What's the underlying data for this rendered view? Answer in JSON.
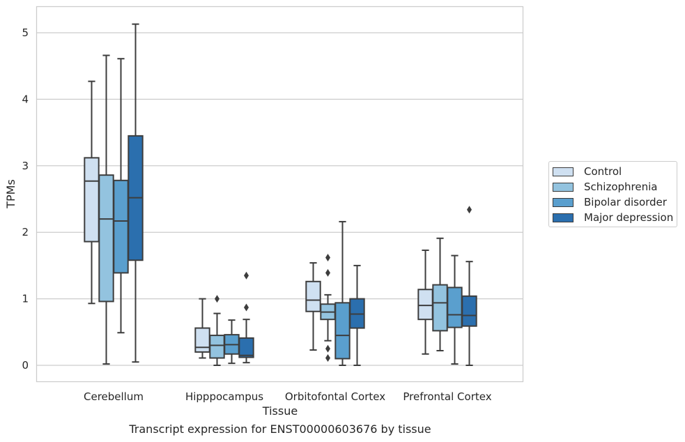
{
  "chart_data": {
    "type": "box",
    "title": "",
    "xlabel": "Tissue",
    "ylabel": "TPMs",
    "caption": "Transcript expression for ENST00000603676 by tissue",
    "ylim": [
      -0.25,
      5.4
    ],
    "yticks": [
      0,
      1,
      2,
      3,
      4,
      5
    ],
    "grid": "horizontal",
    "legend_placement": "right",
    "categories": [
      "Cerebellum",
      "Hipppocampus",
      "Orbitofontal Cortex",
      "Prefrontal Cortex"
    ],
    "series": [
      {
        "name": "Control",
        "color": "#cfe0f1",
        "boxes": [
          {
            "whisker_low": 0.93,
            "q1": 1.86,
            "median": 2.77,
            "q3": 3.12,
            "whisker_high": 4.27,
            "outliers": []
          },
          {
            "whisker_low": 0.11,
            "q1": 0.2,
            "median": 0.27,
            "q3": 0.56,
            "whisker_high": 1.0,
            "outliers": []
          },
          {
            "whisker_low": 0.23,
            "q1": 0.81,
            "median": 0.98,
            "q3": 1.26,
            "whisker_high": 1.54,
            "outliers": []
          },
          {
            "whisker_low": 0.17,
            "q1": 0.69,
            "median": 0.9,
            "q3": 1.14,
            "whisker_high": 1.73,
            "outliers": []
          }
        ]
      },
      {
        "name": "Schizophrenia",
        "color": "#93c3df",
        "boxes": [
          {
            "whisker_low": 0.02,
            "q1": 0.96,
            "median": 2.2,
            "q3": 2.86,
            "whisker_high": 4.66,
            "outliers": []
          },
          {
            "whisker_low": 0.0,
            "q1": 0.11,
            "median": 0.3,
            "q3": 0.45,
            "whisker_high": 0.78,
            "outliers": [
              1.0
            ]
          },
          {
            "whisker_low": 0.37,
            "q1": 0.69,
            "median": 0.8,
            "q3": 0.92,
            "whisker_high": 1.06,
            "outliers": [
              1.62,
              1.39,
              0.25,
              0.11
            ]
          },
          {
            "whisker_low": 0.22,
            "q1": 0.52,
            "median": 0.94,
            "q3": 1.21,
            "whisker_high": 1.91,
            "outliers": []
          }
        ]
      },
      {
        "name": "Bipolar disorder",
        "color": "#5a9fce",
        "boxes": [
          {
            "whisker_low": 0.49,
            "q1": 1.39,
            "median": 2.17,
            "q3": 2.78,
            "whisker_high": 4.61,
            "outliers": []
          },
          {
            "whisker_low": 0.03,
            "q1": 0.17,
            "median": 0.31,
            "q3": 0.46,
            "whisker_high": 0.68,
            "outliers": []
          },
          {
            "whisker_low": 0.0,
            "q1": 0.1,
            "median": 0.45,
            "q3": 0.94,
            "whisker_high": 2.16,
            "outliers": []
          },
          {
            "whisker_low": 0.02,
            "q1": 0.57,
            "median": 0.76,
            "q3": 1.17,
            "whisker_high": 1.65,
            "outliers": []
          }
        ]
      },
      {
        "name": "Major depression",
        "color": "#2b6fae",
        "boxes": [
          {
            "whisker_low": 0.05,
            "q1": 1.58,
            "median": 2.52,
            "q3": 3.45,
            "whisker_high": 5.13,
            "outliers": []
          },
          {
            "whisker_low": 0.04,
            "q1": 0.12,
            "median": 0.15,
            "q3": 0.41,
            "whisker_high": 0.69,
            "outliers": [
              1.35,
              0.87
            ]
          },
          {
            "whisker_low": 0.0,
            "q1": 0.56,
            "median": 0.77,
            "q3": 1.0,
            "whisker_high": 1.5,
            "outliers": []
          },
          {
            "whisker_low": 0.0,
            "q1": 0.59,
            "median": 0.75,
            "q3": 1.04,
            "whisker_high": 1.56,
            "outliers": [
              2.34
            ]
          }
        ]
      }
    ]
  }
}
